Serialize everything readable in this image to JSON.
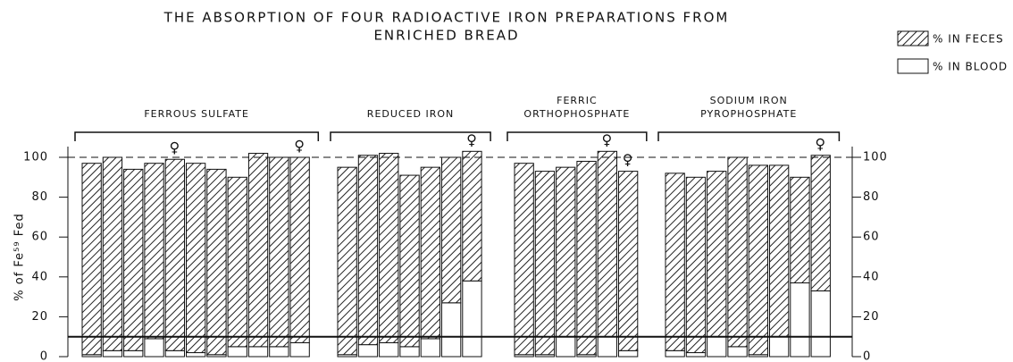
{
  "chart_data": {
    "type": "bar",
    "stacked": true,
    "title": [
      "THE ABSORPTION OF FOUR RADIOACTIVE IRON PREPARATIONS FROM",
      "ENRICHED BREAD"
    ],
    "ylabel": "% of Fe⁵⁹ Fed",
    "ylim": [
      0,
      100
    ],
    "yticks": [
      0,
      20,
      40,
      60,
      80,
      100
    ],
    "dashed_line": 100,
    "solid_line": 10,
    "female_symbol": "♀",
    "legend": {
      "feces": "% IN FECES",
      "blood": "% IN BLOOD"
    },
    "groups": [
      {
        "label": [
          "FERROUS SULFATE"
        ],
        "blood": [
          1,
          3,
          3,
          9,
          3,
          2,
          1,
          5,
          5,
          5,
          7
        ],
        "feces": [
          96,
          97,
          91,
          88,
          96,
          95,
          93,
          85,
          97,
          95,
          93
        ],
        "female": [
          false,
          false,
          false,
          false,
          true,
          false,
          false,
          false,
          false,
          false,
          true
        ]
      },
      {
        "label": [
          "REDUCED IRON"
        ],
        "blood": [
          1,
          6,
          7,
          5,
          9,
          27,
          38
        ],
        "feces": [
          94,
          95,
          95,
          86,
          86,
          73,
          65
        ],
        "female": [
          false,
          false,
          false,
          false,
          false,
          false,
          true
        ]
      },
      {
        "label": [
          "FERRIC",
          "ORTHOPHOSPHATE"
        ],
        "blood": [
          1,
          1,
          10,
          1,
          10,
          3
        ],
        "feces": [
          96,
          92,
          85,
          97,
          93,
          90
        ],
        "female": [
          false,
          false,
          false,
          false,
          true,
          true
        ]
      },
      {
        "label": [
          "SODIUM IRON",
          "PYROPHOSPHATE"
        ],
        "blood": [
          3,
          2,
          10,
          5,
          1,
          10,
          37,
          33
        ],
        "feces": [
          89,
          88,
          83,
          95,
          95,
          86,
          53,
          68
        ],
        "female": [
          false,
          false,
          false,
          false,
          false,
          false,
          false,
          true
        ]
      }
    ]
  }
}
